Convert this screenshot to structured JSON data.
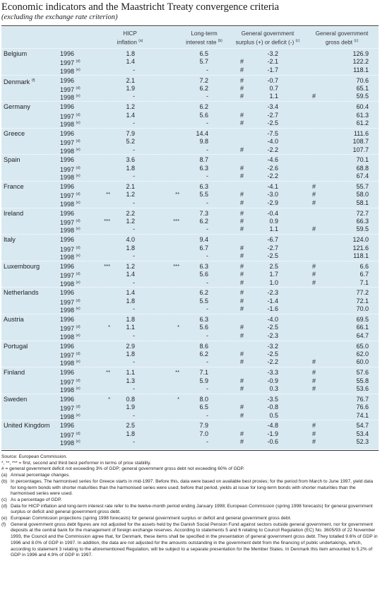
{
  "title": "Economic indicators and the Maastricht Treaty convergence criteria",
  "subtitle": "(excluding the exchange rate criterion)",
  "headers": {
    "hicp": "HICP",
    "hicp2": "inflation",
    "hicp_sup": "(a)",
    "lti": "Long-term",
    "lti2": "interest rate",
    "lti_sup": "(b)",
    "ggs": "General government",
    "ggs2": "surplus (+) or deficit (-)",
    "ggs_sup": "(c)",
    "ggd": "General government",
    "ggd2": "gross debt",
    "ggd_sup": "(c)"
  },
  "rows": [
    {
      "country": "Belgium",
      "sup": "",
      "years": [
        {
          "y": "1996",
          "ys": "",
          "hs": "",
          "h": "1.8",
          "ls": "",
          "l": "6.5",
          "sm": "",
          "s": "-3.2",
          "dm": "",
          "d": "126.9"
        },
        {
          "y": "1997",
          "ys": "(d)",
          "hs": "",
          "h": "1.4",
          "ls": "",
          "l": "5.7",
          "sm": "#",
          "s": "-2.1",
          "dm": "",
          "d": "122.2"
        },
        {
          "y": "1998",
          "ys": "(e)",
          "hs": "",
          "h": "-",
          "ls": "",
          "l": "-",
          "sm": "#",
          "s": "-1.7",
          "dm": "",
          "d": "118.1"
        }
      ]
    },
    {
      "country": "Denmark",
      "sup": "(f)",
      "years": [
        {
          "y": "1996",
          "ys": "",
          "hs": "",
          "h": "2.1",
          "ls": "",
          "l": "7.2",
          "sm": "#",
          "s": "-0.7",
          "dm": "",
          "d": "70.6"
        },
        {
          "y": "1997",
          "ys": "(d)",
          "hs": "",
          "h": "1.9",
          "ls": "",
          "l": "6.2",
          "sm": "#",
          "s": "0.7",
          "dm": "",
          "d": "65.1"
        },
        {
          "y": "1998",
          "ys": "(e)",
          "hs": "",
          "h": "-",
          "ls": "",
          "l": "-",
          "sm": "#",
          "s": "1.1",
          "dm": "#",
          "d": "59.5"
        }
      ]
    },
    {
      "country": "Germany",
      "sup": "",
      "years": [
        {
          "y": "1996",
          "ys": "",
          "hs": "",
          "h": "1.2",
          "ls": "",
          "l": "6.2",
          "sm": "",
          "s": "-3.4",
          "dm": "",
          "d": "60.4"
        },
        {
          "y": "1997",
          "ys": "(d)",
          "hs": "",
          "h": "1.4",
          "ls": "",
          "l": "5.6",
          "sm": "#",
          "s": "-2.7",
          "dm": "",
          "d": "61.3"
        },
        {
          "y": "1998",
          "ys": "(e)",
          "hs": "",
          "h": "-",
          "ls": "",
          "l": "-",
          "sm": "#",
          "s": "-2.5",
          "dm": "",
          "d": "61.2"
        }
      ]
    },
    {
      "country": "Greece",
      "sup": "",
      "years": [
        {
          "y": "1996",
          "ys": "",
          "hs": "",
          "h": "7.9",
          "ls": "",
          "l": "14.4",
          "sm": "",
          "s": "-7.5",
          "dm": "",
          "d": "111.6"
        },
        {
          "y": "1997",
          "ys": "(d)",
          "hs": "",
          "h": "5.2",
          "ls": "",
          "l": "9.8",
          "sm": "",
          "s": "-4.0",
          "dm": "",
          "d": "108.7"
        },
        {
          "y": "1998",
          "ys": "(e)",
          "hs": "",
          "h": "-",
          "ls": "",
          "l": "-",
          "sm": "#",
          "s": "-2.2",
          "dm": "",
          "d": "107.7"
        }
      ]
    },
    {
      "country": "Spain",
      "sup": "",
      "years": [
        {
          "y": "1996",
          "ys": "",
          "hs": "",
          "h": "3.6",
          "ls": "",
          "l": "8.7",
          "sm": "",
          "s": "-4.6",
          "dm": "",
          "d": "70.1"
        },
        {
          "y": "1997",
          "ys": "(d)",
          "hs": "",
          "h": "1.8",
          "ls": "",
          "l": "6.3",
          "sm": "#",
          "s": "-2.6",
          "dm": "",
          "d": "68.8"
        },
        {
          "y": "1998",
          "ys": "(e)",
          "hs": "",
          "h": "-",
          "ls": "",
          "l": "-",
          "sm": "#",
          "s": "-2.2",
          "dm": "",
          "d": "67.4"
        }
      ]
    },
    {
      "country": "France",
      "sup": "",
      "years": [
        {
          "y": "1996",
          "ys": "",
          "hs": "",
          "h": "2.1",
          "ls": "",
          "l": "6.3",
          "sm": "",
          "s": "-4.1",
          "dm": "#",
          "d": "55.7"
        },
        {
          "y": "1997",
          "ys": "(d)",
          "hs": "**",
          "h": "1.2",
          "ls": "**",
          "l": "5.5",
          "sm": "#",
          "s": "-3.0",
          "dm": "#",
          "d": "58.0"
        },
        {
          "y": "1998",
          "ys": "(e)",
          "hs": "",
          "h": "-",
          "ls": "",
          "l": "-",
          "sm": "#",
          "s": "-2.9",
          "dm": "#",
          "d": "58.1"
        }
      ]
    },
    {
      "country": "Ireland",
      "sup": "",
      "years": [
        {
          "y": "1996",
          "ys": "",
          "hs": "",
          "h": "2.2",
          "ls": "",
          "l": "7.3",
          "sm": "#",
          "s": "-0.4",
          "dm": "",
          "d": "72.7"
        },
        {
          "y": "1997",
          "ys": "(d)",
          "hs": "***",
          "h": "1.2",
          "ls": "***",
          "l": "6.2",
          "sm": "#",
          "s": "0.9",
          "dm": "",
          "d": "66.3"
        },
        {
          "y": "1998",
          "ys": "(e)",
          "hs": "",
          "h": "-",
          "ls": "",
          "l": "-",
          "sm": "#",
          "s": "1.1",
          "dm": "#",
          "d": "59.5"
        }
      ]
    },
    {
      "country": "Italy",
      "sup": "",
      "years": [
        {
          "y": "1996",
          "ys": "",
          "hs": "",
          "h": "4.0",
          "ls": "",
          "l": "9.4",
          "sm": "",
          "s": "-6.7",
          "dm": "",
          "d": "124.0"
        },
        {
          "y": "1997",
          "ys": "(d)",
          "hs": "",
          "h": "1.8",
          "ls": "",
          "l": "6.7",
          "sm": "#",
          "s": "-2.7",
          "dm": "",
          "d": "121.6"
        },
        {
          "y": "1998",
          "ys": "(e)",
          "hs": "",
          "h": "-",
          "ls": "",
          "l": "-",
          "sm": "#",
          "s": "-2.5",
          "dm": "",
          "d": "118.1"
        }
      ]
    },
    {
      "country": "Luxembourg",
      "sup": "",
      "years": [
        {
          "y": "1996",
          "ys": "",
          "hs": "***",
          "h": "1.2",
          "ls": "***",
          "l": "6.3",
          "sm": "#",
          "s": "2.5",
          "dm": "#",
          "d": "6.6"
        },
        {
          "y": "1997",
          "ys": "(d)",
          "hs": "",
          "h": "1.4",
          "ls": "",
          "l": "5.6",
          "sm": "#",
          "s": "1.7",
          "dm": "#",
          "d": "6.7"
        },
        {
          "y": "1998",
          "ys": "(e)",
          "hs": "",
          "h": "-",
          "ls": "",
          "l": "-",
          "sm": "#",
          "s": "1.0",
          "dm": "#",
          "d": "7.1"
        }
      ]
    },
    {
      "country": "Netherlands",
      "sup": "",
      "years": [
        {
          "y": "1996",
          "ys": "",
          "hs": "",
          "h": "1.4",
          "ls": "",
          "l": "6.2",
          "sm": "#",
          "s": "-2.3",
          "dm": "",
          "d": "77.2"
        },
        {
          "y": "1997",
          "ys": "(d)",
          "hs": "",
          "h": "1.8",
          "ls": "",
          "l": "5.5",
          "sm": "#",
          "s": "-1.4",
          "dm": "",
          "d": "72.1"
        },
        {
          "y": "1998",
          "ys": "(e)",
          "hs": "",
          "h": "-",
          "ls": "",
          "l": "-",
          "sm": "#",
          "s": "-1.6",
          "dm": "",
          "d": "70.0"
        }
      ]
    },
    {
      "country": "Austria",
      "sup": "",
      "years": [
        {
          "y": "1996",
          "ys": "",
          "hs": "",
          "h": "1.8",
          "ls": "",
          "l": "6.3",
          "sm": "",
          "s": "-4.0",
          "dm": "",
          "d": "69.5"
        },
        {
          "y": "1997",
          "ys": "(d)",
          "hs": "*",
          "h": "1.1",
          "ls": "*",
          "l": "5.6",
          "sm": "#",
          "s": "-2.5",
          "dm": "",
          "d": "66.1"
        },
        {
          "y": "1998",
          "ys": "(e)",
          "hs": "",
          "h": "-",
          "ls": "",
          "l": "-",
          "sm": "#",
          "s": "-2.3",
          "dm": "",
          "d": "64.7"
        }
      ]
    },
    {
      "country": "Portugal",
      "sup": "",
      "years": [
        {
          "y": "1996",
          "ys": "",
          "hs": "",
          "h": "2.9",
          "ls": "",
          "l": "8.6",
          "sm": "",
          "s": "-3.2",
          "dm": "",
          "d": "65.0"
        },
        {
          "y": "1997",
          "ys": "(d)",
          "hs": "",
          "h": "1.8",
          "ls": "",
          "l": "6.2",
          "sm": "#",
          "s": "-2.5",
          "dm": "",
          "d": "62.0"
        },
        {
          "y": "1998",
          "ys": "(e)",
          "hs": "",
          "h": "-",
          "ls": "",
          "l": "-",
          "sm": "#",
          "s": "-2.2",
          "dm": "#",
          "d": "60.0"
        }
      ]
    },
    {
      "country": "Finland",
      "sup": "",
      "years": [
        {
          "y": "1996",
          "ys": "",
          "hs": "**",
          "h": "1.1",
          "ls": "**",
          "l": "7.1",
          "sm": "",
          "s": "-3.3",
          "dm": "#",
          "d": "57.6"
        },
        {
          "y": "1997",
          "ys": "(d)",
          "hs": "",
          "h": "1.3",
          "ls": "",
          "l": "5.9",
          "sm": "#",
          "s": "-0.9",
          "dm": "#",
          "d": "55.8"
        },
        {
          "y": "1998",
          "ys": "(e)",
          "hs": "",
          "h": "-",
          "ls": "",
          "l": "-",
          "sm": "#",
          "s": "0.3",
          "dm": "#",
          "d": "53.6"
        }
      ]
    },
    {
      "country": "Sweden",
      "sup": "",
      "years": [
        {
          "y": "1996",
          "ys": "",
          "hs": "*",
          "h": "0.8",
          "ls": "*",
          "l": "8.0",
          "sm": "",
          "s": "-3.5",
          "dm": "",
          "d": "76.7"
        },
        {
          "y": "1997",
          "ys": "(d)",
          "hs": "",
          "h": "1.9",
          "ls": "",
          "l": "6.5",
          "sm": "#",
          "s": "-0.8",
          "dm": "",
          "d": "76.6"
        },
        {
          "y": "1998",
          "ys": "(e)",
          "hs": "",
          "h": "-",
          "ls": "",
          "l": "-",
          "sm": "#",
          "s": "0.5",
          "dm": "",
          "d": "74.1"
        }
      ]
    },
    {
      "country": "United Kingdom",
      "sup": "",
      "years": [
        {
          "y": "1996",
          "ys": "",
          "hs": "",
          "h": "2.5",
          "ls": "",
          "l": "7.9",
          "sm": "",
          "s": "-4.8",
          "dm": "#",
          "d": "54.7"
        },
        {
          "y": "1997",
          "ys": "(d)",
          "hs": "",
          "h": "1.8",
          "ls": "",
          "l": "7.0",
          "sm": "#",
          "s": "-1.9",
          "dm": "#",
          "d": "53.4"
        },
        {
          "y": "1998",
          "ys": "(e)",
          "hs": "",
          "h": "-",
          "ls": "",
          "l": "-",
          "sm": "#",
          "s": "-0.6",
          "dm": "#",
          "d": "52.3"
        }
      ]
    }
  ],
  "notes": [
    {
      "label": "",
      "text": "Source: European Commission."
    },
    {
      "label": "",
      "text": "*, **, *** = first, second and third best performer in terms of price stability."
    },
    {
      "label": "",
      "text": "# = general government deficit not exceeding 3% of GDP; general government gross debt not exceeding 60% of GDP."
    },
    {
      "label": "(a)",
      "text": "Annual percentage changes."
    },
    {
      "label": "(b)",
      "text": "In percentages. The harmonised series for Greece starts in mid-1997. Before this, data were based on available best proxies; for the period from March to June 1997, yield data for long-term bonds with shorter maturities than the harmonised series were used; before that period, yields at issue for long-term bonds with shorter maturities than the harmonised series were used."
    },
    {
      "label": "(c)",
      "text": "As a percentage of GDP."
    },
    {
      "label": "(d)",
      "text": "Data for HICP inflation and long-term interest rate refer to the twelve-month period ending January 1998; European Commission (spring 1998 forecasts) for general government surplus or deficit and general government gross debt."
    },
    {
      "label": "(e)",
      "text": "European Commission projections (spring 1998 forecasts) for general government surplus or deficit and general government gross debt."
    },
    {
      "label": "(f)",
      "text": "General government gross debt figures are not adjusted for the assets held by the Danish Social Pension Fund against sectors outside general government, nor for government deposits at the central bank for the management of foreign exchange reserves. According to statements 5 and 6 relating to Council Regulation (EC) No. 3605/93 of 22 November 1993, the Council and the Commission agree that, for Denmark, these items shall be specified in the presentation of general government gross debt. They totalled 9.6% of GDP in 1996 and 8.0% of GDP in 1997. In addition, the data are not adjusted for the amounts outstanding in the government debt from the financing of public undertakings, which, according to statement 3 relating to the aforementioned Regulation, will be subject to a separate presentation for the Member States. In Denmark this item amounted to 5.2% of GDP in 1996 and 4.9% of GDP in 1997."
    }
  ]
}
